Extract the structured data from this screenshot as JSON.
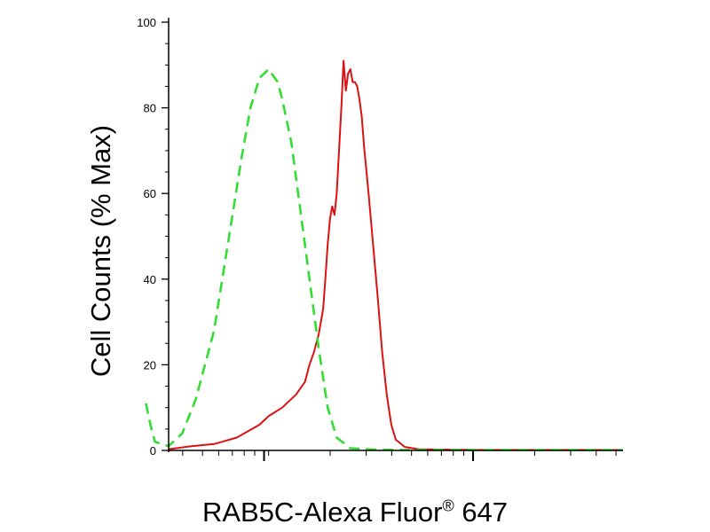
{
  "chart_data": {
    "type": "line",
    "title": "",
    "xlabel": "RAB5C-Alexa Fluor® 647",
    "ylabel": "Cell Counts (% Max)",
    "x_scale": "log",
    "ylim": [
      0,
      100
    ],
    "y_ticks": [
      "0",
      "20",
      "40",
      "60",
      "80",
      "100"
    ],
    "grid": false,
    "legend": "none",
    "series": [
      {
        "color": "#dd1111",
        "style": "solid",
        "values": [
          [
            0,
            0.3
          ],
          [
            0.05,
            1
          ],
          [
            0.1,
            1.5
          ],
          [
            0.15,
            3
          ],
          [
            0.2,
            6
          ],
          [
            0.22,
            8
          ],
          [
            0.25,
            10
          ],
          [
            0.28,
            13
          ],
          [
            0.3,
            16
          ],
          [
            0.31,
            20
          ],
          [
            0.32,
            23
          ],
          [
            0.33,
            27
          ],
          [
            0.34,
            33
          ],
          [
            0.345,
            40
          ],
          [
            0.35,
            48
          ],
          [
            0.355,
            54
          ],
          [
            0.36,
            57
          ],
          [
            0.365,
            55
          ],
          [
            0.37,
            60
          ],
          [
            0.375,
            70
          ],
          [
            0.38,
            80
          ],
          [
            0.385,
            91
          ],
          [
            0.39,
            84
          ],
          [
            0.395,
            88
          ],
          [
            0.4,
            89
          ],
          [
            0.405,
            86
          ],
          [
            0.41,
            86
          ],
          [
            0.415,
            85
          ],
          [
            0.42,
            82
          ],
          [
            0.425,
            78
          ],
          [
            0.43,
            71
          ],
          [
            0.44,
            60
          ],
          [
            0.45,
            48
          ],
          [
            0.46,
            36
          ],
          [
            0.47,
            23
          ],
          [
            0.48,
            13
          ],
          [
            0.49,
            6
          ],
          [
            0.5,
            2.5
          ],
          [
            0.52,
            0.8
          ],
          [
            0.55,
            0.3
          ],
          [
            0.6,
            0.2
          ],
          [
            0.7,
            0.1
          ],
          [
            0.8,
            0.1
          ],
          [
            0.95,
            0.1
          ],
          [
            1,
            0.1
          ]
        ]
      },
      {
        "color": "#33dd33",
        "style": "dashed",
        "values": [
          [
            -0.05,
            11
          ],
          [
            -0.04,
            6
          ],
          [
            -0.03,
            2
          ],
          [
            0,
            1
          ],
          [
            0.03,
            4
          ],
          [
            0.06,
            12
          ],
          [
            0.1,
            28
          ],
          [
            0.13,
            48
          ],
          [
            0.16,
            68
          ],
          [
            0.18,
            80
          ],
          [
            0.2,
            87
          ],
          [
            0.22,
            89
          ],
          [
            0.24,
            86
          ],
          [
            0.25,
            82
          ],
          [
            0.27,
            72
          ],
          [
            0.29,
            56
          ],
          [
            0.31,
            40
          ],
          [
            0.33,
            24
          ],
          [
            0.35,
            10
          ],
          [
            0.37,
            3
          ],
          [
            0.4,
            0.5
          ],
          [
            0.45,
            0.2
          ],
          [
            0.5,
            0.1
          ],
          [
            0.6,
            0.1
          ],
          [
            0.8,
            0.1
          ],
          [
            1,
            0.1
          ]
        ]
      }
    ]
  }
}
